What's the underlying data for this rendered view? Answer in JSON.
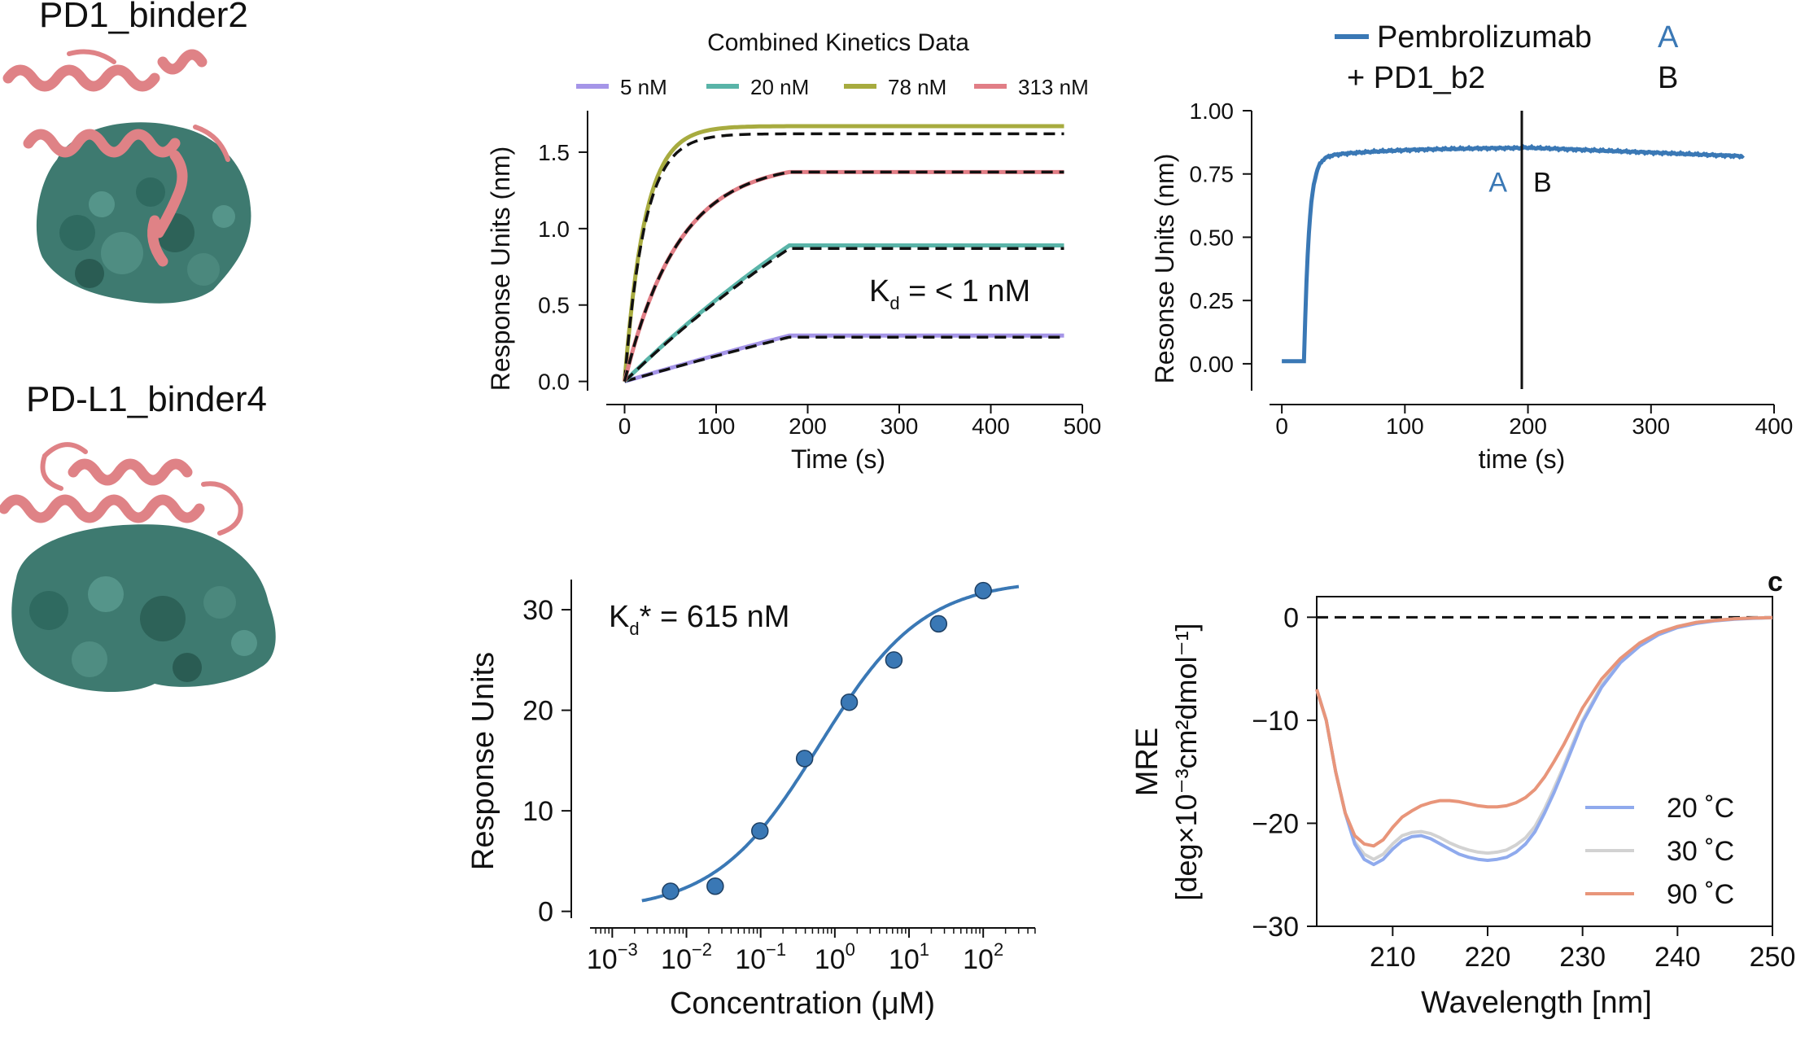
{
  "proteins": [
    {
      "name": "PD1_binder2"
    },
    {
      "name": "PD-L1_binder4"
    }
  ],
  "colors": {
    "binder": "#df8286",
    "target": "#3e7a70",
    "blue": "#3a78b5",
    "c5": "#a595e8",
    "c20": "#59b4a8",
    "c78": "#a7ab3f",
    "c313": "#e17e86",
    "cd20": "#8faaed",
    "cd30": "#d2d2d2",
    "cd90": "#e8957a"
  },
  "icons": [
    "pd1-binder2-structure-render",
    "pdl1-binder4-structure-render"
  ],
  "chart_data": [
    {
      "id": "kinetics",
      "type": "line",
      "title": "Combined Kinetics Data",
      "xlabel": "Time (s)",
      "ylabel": "Response Units (nm)",
      "xlim": [
        -20,
        500
      ],
      "ylim": [
        -0.05,
        1.75
      ],
      "xticks": [
        "0",
        "100",
        "200",
        "300",
        "400",
        "500"
      ],
      "yticks": [
        "0.0",
        "0.5",
        "1.0",
        "1.5"
      ],
      "annotation": {
        "main": "K",
        "sub": "d",
        "rest": " = < 1 nM"
      },
      "legend_position": "top",
      "association_end_s": 180,
      "series": [
        {
          "name": "5 nM",
          "plateau": 0.3,
          "k": 0.0008,
          "fit_plateau": 0.29,
          "color_key": "c5"
        },
        {
          "name": "20 nM",
          "plateau": 0.89,
          "k": 0.002,
          "fit_plateau": 0.87,
          "color_key": "c20"
        },
        {
          "name": "78 nM",
          "plateau": 1.67,
          "k": 0.045,
          "fit_plateau": 1.62,
          "color_key": "c78"
        },
        {
          "name": "313 nM",
          "plateau": 1.37,
          "k": 0.017,
          "fit_plateau": 1.37,
          "color_key": "c313"
        }
      ]
    },
    {
      "id": "competition",
      "type": "line",
      "xlabel": "time (s)",
      "ylabel": "Resonse Units (nm)",
      "xlim": [
        -10,
        400
      ],
      "ylim": [
        -0.1,
        1.0
      ],
      "xticks": [
        "0",
        "100",
        "200",
        "300",
        "400"
      ],
      "yticks": [
        "0.00",
        "0.25",
        "0.50",
        "0.75",
        "1.00"
      ],
      "switch_time_s": 195,
      "legend": [
        {
          "label": "Pembrolizumab",
          "tag": "A"
        },
        {
          "label": "+ PD1_b2",
          "tag": "B"
        }
      ],
      "phase_labels": [
        "A",
        "B"
      ],
      "series": [
        {
          "name": "Pembrolizumab",
          "baseline": 0.01,
          "onset_s": 18,
          "plateau": 0.855,
          "end_value": 0.82,
          "end_s": 375
        }
      ]
    },
    {
      "id": "titration",
      "type": "scatter",
      "xlabel": "Concentration (μM)",
      "ylabel": "Response Units",
      "xscale": "log",
      "xlim_exp": [
        -3.3,
        2.7
      ],
      "ylim": [
        -1,
        33
      ],
      "xtick_exps": [
        "-3",
        "-2",
        "-1",
        "0",
        "1",
        "2"
      ],
      "yticks": [
        "0",
        "10",
        "20",
        "30"
      ],
      "annotation": {
        "main": "K",
        "sub": "d",
        "rest": "* = 615 nM"
      },
      "points_x_uM": [
        0.0061,
        0.0244,
        0.0977,
        0.391,
        1.563,
        6.25,
        25.0,
        100.0
      ],
      "points_y": [
        2.0,
        2.5,
        8.0,
        15.2,
        20.8,
        25.0,
        28.6,
        31.9
      ],
      "fit": {
        "bottom": 0.0,
        "top": 33.0,
        "ec50_uM": 0.615,
        "hill": 0.62
      }
    },
    {
      "id": "cd",
      "type": "line",
      "panel_label": "c",
      "xlabel": "Wavelength [nm]",
      "ylabel_top": "MRE",
      "ylabel_bottom": "[deg×10⁻³cm²dmol⁻¹]",
      "xlim": [
        202,
        250
      ],
      "ylim": [
        -30,
        2
      ],
      "xticks": [
        "210",
        "220",
        "230",
        "240",
        "250"
      ],
      "yticks": [
        "0",
        "−10",
        "−20",
        "−30"
      ],
      "legend_position": "lower-right",
      "series": [
        {
          "name": "20 ˚C",
          "color_key": "cd20",
          "x": [
            202,
            203,
            204,
            205,
            206,
            207,
            208,
            209,
            210,
            211,
            212,
            213,
            214,
            215,
            216,
            217,
            218,
            219,
            220,
            221,
            222,
            223,
            224,
            225,
            226,
            227,
            228,
            229,
            230,
            232,
            234,
            236,
            238,
            240,
            242,
            244,
            246,
            248,
            250
          ],
          "y": [
            -7,
            -10,
            -15,
            -19,
            -22,
            -23.5,
            -24,
            -23.5,
            -22.5,
            -21.7,
            -21.3,
            -21.2,
            -21.5,
            -22,
            -22.5,
            -23,
            -23.3,
            -23.5,
            -23.6,
            -23.5,
            -23.3,
            -22.8,
            -22,
            -20.8,
            -19,
            -17,
            -14.8,
            -12.5,
            -10.2,
            -6.8,
            -4.4,
            -2.8,
            -1.7,
            -1,
            -0.6,
            -0.35,
            -0.2,
            -0.1,
            -0.05
          ]
        },
        {
          "name": "30 ˚C",
          "color_key": "cd30",
          "x": [
            202,
            203,
            204,
            205,
            206,
            207,
            208,
            209,
            210,
            211,
            212,
            213,
            214,
            215,
            216,
            217,
            218,
            219,
            220,
            221,
            222,
            223,
            224,
            225,
            226,
            227,
            228,
            229,
            230,
            232,
            234,
            236,
            238,
            240,
            242,
            244,
            246,
            248,
            250
          ],
          "y": [
            -7,
            -10,
            -15,
            -19,
            -21.8,
            -23,
            -23.5,
            -23,
            -22,
            -21.2,
            -20.9,
            -20.8,
            -21,
            -21.4,
            -21.9,
            -22.3,
            -22.6,
            -22.8,
            -22.9,
            -22.8,
            -22.6,
            -22.1,
            -21.4,
            -20.3,
            -18.6,
            -16.6,
            -14.5,
            -12.2,
            -10,
            -6.6,
            -4.2,
            -2.6,
            -1.5,
            -0.9,
            -0.5,
            -0.3,
            -0.15,
            -0.08,
            -0.03
          ]
        },
        {
          "name": "90 ˚C",
          "color_key": "cd90",
          "x": [
            202,
            203,
            204,
            205,
            206,
            207,
            208,
            209,
            210,
            211,
            212,
            213,
            214,
            215,
            216,
            217,
            218,
            219,
            220,
            221,
            222,
            223,
            224,
            225,
            226,
            227,
            228,
            229,
            230,
            232,
            234,
            236,
            238,
            240,
            242,
            244,
            246,
            248,
            250
          ],
          "y": [
            -7,
            -10,
            -15,
            -19,
            -21.2,
            -22,
            -22.2,
            -21.6,
            -20.4,
            -19.4,
            -18.8,
            -18.3,
            -18,
            -17.8,
            -17.8,
            -17.9,
            -18.1,
            -18.3,
            -18.4,
            -18.4,
            -18.3,
            -18,
            -17.5,
            -16.7,
            -15.5,
            -14,
            -12.4,
            -10.6,
            -8.8,
            -6,
            -4,
            -2.5,
            -1.5,
            -0.9,
            -0.5,
            -0.3,
            -0.15,
            -0.08,
            -0.03
          ]
        }
      ]
    }
  ]
}
